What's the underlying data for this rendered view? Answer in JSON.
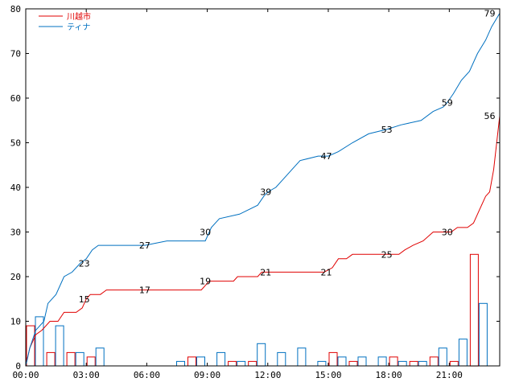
{
  "chart_data": {
    "type": "line",
    "xlabel": "",
    "ylabel": "",
    "x_range_hours": [
      0,
      23.5
    ],
    "ylim": [
      0,
      80
    ],
    "y_ticks": [
      0,
      10,
      20,
      30,
      40,
      50,
      60,
      70,
      80
    ],
    "x_ticks": [
      {
        "hour": 0,
        "label": "00:00"
      },
      {
        "hour": 3,
        "label": "03:00"
      },
      {
        "hour": 6,
        "label": "06:00"
      },
      {
        "hour": 9,
        "label": "09:00"
      },
      {
        "hour": 12,
        "label": "12:00"
      },
      {
        "hour": 15,
        "label": "15:00"
      },
      {
        "hour": 18,
        "label": "18:00"
      },
      {
        "hour": 21,
        "label": "21:00"
      }
    ],
    "grid": false,
    "legend_position": "top-left",
    "series": [
      {
        "name": "川越市",
        "color": "#e00000",
        "cumulative": [
          {
            "x": 0,
            "y": 0
          },
          {
            "x": 0.2,
            "y": 4
          },
          {
            "x": 0.5,
            "y": 7
          },
          {
            "x": 0.8,
            "y": 8
          },
          {
            "x": 1.2,
            "y": 10
          },
          {
            "x": 1.6,
            "y": 10
          },
          {
            "x": 1.9,
            "y": 12
          },
          {
            "x": 2.5,
            "y": 12
          },
          {
            "x": 2.8,
            "y": 13
          },
          {
            "x": 3.0,
            "y": 15
          },
          {
            "x": 3.2,
            "y": 16
          },
          {
            "x": 3.7,
            "y": 16
          },
          {
            "x": 4.0,
            "y": 17
          },
          {
            "x": 5.9,
            "y": 17
          },
          {
            "x": 8.7,
            "y": 17
          },
          {
            "x": 8.9,
            "y": 18
          },
          {
            "x": 9.1,
            "y": 19
          },
          {
            "x": 10.3,
            "y": 19
          },
          {
            "x": 10.5,
            "y": 20
          },
          {
            "x": 11.5,
            "y": 20
          },
          {
            "x": 11.7,
            "y": 21
          },
          {
            "x": 14.6,
            "y": 21
          },
          {
            "x": 14.8,
            "y": 21
          },
          {
            "x": 15.2,
            "y": 22
          },
          {
            "x": 15.5,
            "y": 24
          },
          {
            "x": 15.9,
            "y": 24
          },
          {
            "x": 16.2,
            "y": 25
          },
          {
            "x": 18.5,
            "y": 25
          },
          {
            "x": 18.8,
            "y": 26
          },
          {
            "x": 19.2,
            "y": 27
          },
          {
            "x": 19.7,
            "y": 28
          },
          {
            "x": 20.2,
            "y": 30
          },
          {
            "x": 21.1,
            "y": 30
          },
          {
            "x": 21.4,
            "y": 31
          },
          {
            "x": 21.9,
            "y": 31
          },
          {
            "x": 22.2,
            "y": 32
          },
          {
            "x": 22.5,
            "y": 35
          },
          {
            "x": 22.8,
            "y": 38
          },
          {
            "x": 23.0,
            "y": 39
          },
          {
            "x": 23.2,
            "y": 44
          },
          {
            "x": 23.5,
            "y": 56
          }
        ],
        "hourly_counts": [
          9,
          3,
          3,
          2,
          0,
          0,
          0,
          0,
          2,
          0,
          1,
          1,
          0,
          0,
          0,
          3,
          1,
          0,
          2,
          1,
          2,
          1,
          25,
          0
        ],
        "labels": [
          {
            "x": 2.9,
            "y": 15,
            "text": "15"
          },
          {
            "x": 5.9,
            "y": 17,
            "text": "17"
          },
          {
            "x": 8.9,
            "y": 19,
            "text": "19"
          },
          {
            "x": 11.9,
            "y": 21,
            "text": "21"
          },
          {
            "x": 14.9,
            "y": 21,
            "text": "21"
          },
          {
            "x": 17.9,
            "y": 25,
            "text": "25"
          },
          {
            "x": 20.9,
            "y": 30,
            "text": "30"
          },
          {
            "x": 23.0,
            "y": 56,
            "text": "56"
          }
        ]
      },
      {
        "name": "ティナ",
        "color": "#0070c0",
        "cumulative": [
          {
            "x": 0,
            "y": 0
          },
          {
            "x": 0.2,
            "y": 4
          },
          {
            "x": 0.5,
            "y": 8
          },
          {
            "x": 0.9,
            "y": 10
          },
          {
            "x": 1.1,
            "y": 14
          },
          {
            "x": 1.5,
            "y": 16
          },
          {
            "x": 1.9,
            "y": 20
          },
          {
            "x": 2.3,
            "y": 21
          },
          {
            "x": 2.7,
            "y": 23
          },
          {
            "x": 3.0,
            "y": 24
          },
          {
            "x": 3.3,
            "y": 26
          },
          {
            "x": 3.6,
            "y": 27
          },
          {
            "x": 5.9,
            "y": 27
          },
          {
            "x": 7.0,
            "y": 28
          },
          {
            "x": 8.9,
            "y": 28
          },
          {
            "x": 9.2,
            "y": 31
          },
          {
            "x": 9.6,
            "y": 33
          },
          {
            "x": 10.6,
            "y": 34
          },
          {
            "x": 11.5,
            "y": 36
          },
          {
            "x": 11.8,
            "y": 38
          },
          {
            "x": 12.0,
            "y": 39
          },
          {
            "x": 12.4,
            "y": 40
          },
          {
            "x": 12.8,
            "y": 42
          },
          {
            "x": 13.2,
            "y": 44
          },
          {
            "x": 13.6,
            "y": 46
          },
          {
            "x": 14.5,
            "y": 47
          },
          {
            "x": 15.0,
            "y": 47
          },
          {
            "x": 15.5,
            "y": 48
          },
          {
            "x": 16.2,
            "y": 50
          },
          {
            "x": 17.0,
            "y": 52
          },
          {
            "x": 17.9,
            "y": 53
          },
          {
            "x": 18.6,
            "y": 54
          },
          {
            "x": 19.6,
            "y": 55
          },
          {
            "x": 20.2,
            "y": 57
          },
          {
            "x": 20.7,
            "y": 58
          },
          {
            "x": 20.9,
            "y": 59
          },
          {
            "x": 21.2,
            "y": 61
          },
          {
            "x": 21.6,
            "y": 64
          },
          {
            "x": 22.0,
            "y": 66
          },
          {
            "x": 22.4,
            "y": 70
          },
          {
            "x": 22.8,
            "y": 73
          },
          {
            "x": 23.1,
            "y": 76
          },
          {
            "x": 23.5,
            "y": 79
          }
        ],
        "hourly_counts": [
          11,
          9,
          3,
          4,
          0,
          0,
          0,
          1,
          2,
          3,
          1,
          5,
          3,
          4,
          1,
          2,
          2,
          2,
          1,
          1,
          4,
          6,
          14,
          0
        ],
        "labels": [
          {
            "x": 2.9,
            "y": 23,
            "text": "23"
          },
          {
            "x": 5.9,
            "y": 27,
            "text": "27"
          },
          {
            "x": 8.9,
            "y": 30,
            "text": "30"
          },
          {
            "x": 11.9,
            "y": 39,
            "text": "39"
          },
          {
            "x": 14.9,
            "y": 47,
            "text": "47"
          },
          {
            "x": 17.9,
            "y": 53,
            "text": "53"
          },
          {
            "x": 20.9,
            "y": 59,
            "text": "59"
          },
          {
            "x": 23.0,
            "y": 79,
            "text": "79"
          }
        ]
      }
    ]
  }
}
